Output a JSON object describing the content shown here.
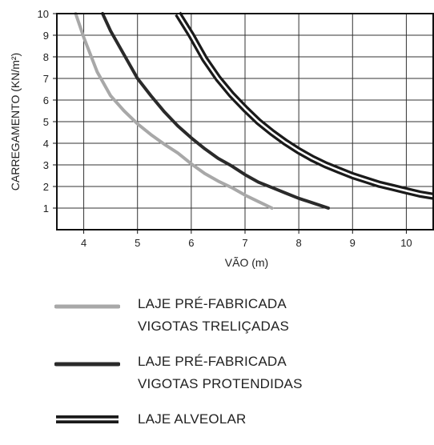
{
  "chart_data": {
    "type": "line",
    "xlabel": "VÃO (m)",
    "ylabel": "CARREGAMENTO (KN/m²)",
    "xlim": [
      3.5,
      10.5
    ],
    "ylim": [
      0,
      10
    ],
    "xticks": [
      "4",
      "5",
      "6",
      "7",
      "8",
      "9",
      "10"
    ],
    "yticks": [
      "1",
      "2",
      "3",
      "4",
      "5",
      "6",
      "7",
      "8",
      "9",
      "10"
    ],
    "grid": true,
    "legend_position": "below",
    "series": [
      {
        "name_lines": [
          "LAJE PRÉ-FABRICADA",
          "VIGOTAS TRELIÇADAS"
        ],
        "style": "single",
        "color": "#a8a8a8",
        "x": [
          3.85,
          4.0,
          4.25,
          4.5,
          4.75,
          5.0,
          5.25,
          5.5,
          5.75,
          6.0,
          6.25,
          6.5,
          6.75,
          7.0,
          7.25,
          7.5
        ],
        "y": [
          10.0,
          8.9,
          7.3,
          6.2,
          5.5,
          4.9,
          4.4,
          3.95,
          3.55,
          3.05,
          2.6,
          2.25,
          1.95,
          1.6,
          1.3,
          1.0
        ]
      },
      {
        "name_lines": [
          "LAJE PRÉ-FABRICADA",
          "VIGOTAS PROTENDIDAS"
        ],
        "style": "single",
        "color": "#2a2a2a",
        "x": [
          4.35,
          4.5,
          4.75,
          5.0,
          5.25,
          5.5,
          5.75,
          6.0,
          6.25,
          6.5,
          6.75,
          7.0,
          7.25,
          7.5,
          7.75,
          8.0,
          8.25,
          8.55
        ],
        "y": [
          10.0,
          9.2,
          8.1,
          7.0,
          6.2,
          5.45,
          4.8,
          4.25,
          3.75,
          3.3,
          2.95,
          2.55,
          2.2,
          1.95,
          1.7,
          1.45,
          1.25,
          1.0
        ]
      },
      {
        "name_lines": [
          "LAJE ALVEOLAR"
        ],
        "style": "double",
        "color": "#1a1a1a",
        "x": [
          5.75,
          6.0,
          6.25,
          6.5,
          6.75,
          7.0,
          7.25,
          7.5,
          7.75,
          8.0,
          8.25,
          8.5,
          8.75,
          9.0,
          9.25,
          9.5,
          9.75,
          10.0,
          10.25,
          10.5
        ],
        "y": [
          10.0,
          9.0,
          7.9,
          7.0,
          6.25,
          5.6,
          5.0,
          4.5,
          4.05,
          3.65,
          3.3,
          3.0,
          2.75,
          2.5,
          2.3,
          2.1,
          1.95,
          1.8,
          1.65,
          1.55
        ]
      }
    ]
  }
}
